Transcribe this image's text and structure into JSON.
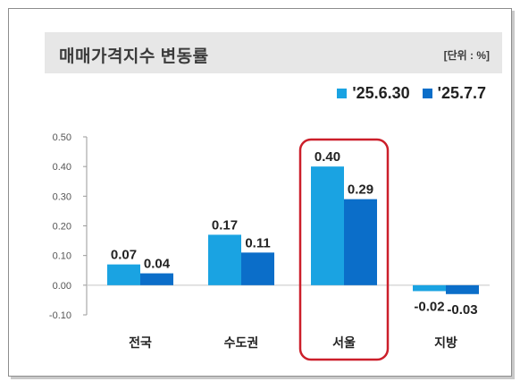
{
  "header": {
    "title": "매매가격지수 변동률",
    "unit": "[단위 : %]"
  },
  "chart_data": {
    "type": "bar",
    "categories": [
      "전국",
      "수도권",
      "서울",
      "지방"
    ],
    "series": [
      {
        "name": "'25.6.30",
        "values": [
          0.07,
          0.17,
          0.4,
          -0.02
        ],
        "color": "#1aa3e2"
      },
      {
        "name": "'25.7.7",
        "values": [
          0.04,
          0.11,
          0.29,
          -0.03
        ],
        "color": "#0b6ec9"
      }
    ],
    "data_labels": [
      [
        "0.07",
        "0.17",
        "0.40",
        "-0.02"
      ],
      [
        "0.04",
        "0.11",
        "0.29",
        "-0.03"
      ]
    ],
    "yticks": [
      "0.50",
      "0.40",
      "0.30",
      "0.20",
      "0.10",
      "0.00",
      "-0.10"
    ],
    "ylim": [
      -0.1,
      0.5
    ],
    "grid": false,
    "legend_position": "top-right",
    "highlight_category": "서울",
    "highlight_color": "#cc1f2a"
  }
}
